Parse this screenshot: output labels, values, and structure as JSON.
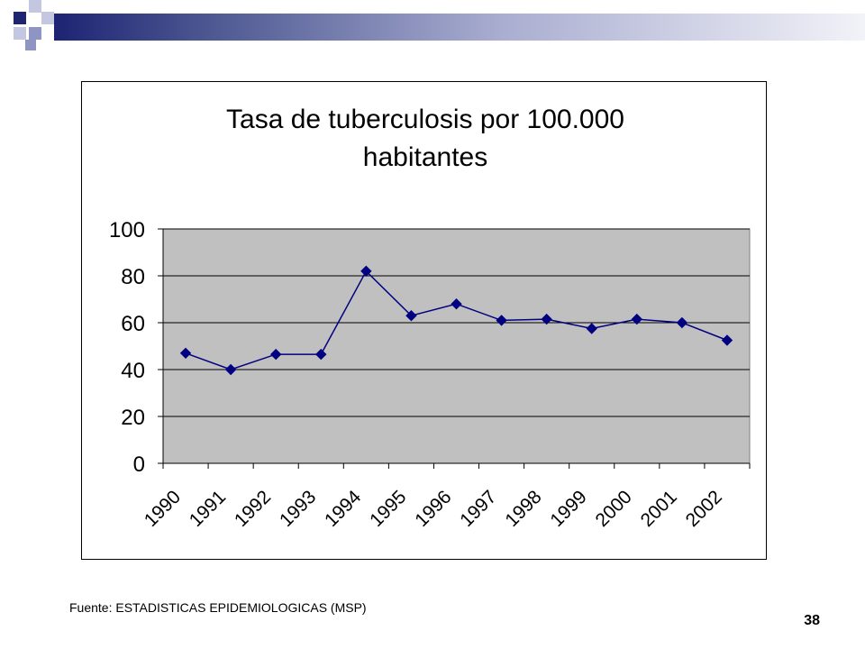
{
  "slide": {
    "source_text": "Fuente: ESTADISTICAS EPIDEMIOLOGICAS (MSP)",
    "page_number": "38",
    "accent_color": "#1c2473"
  },
  "chart_data": {
    "type": "line",
    "title_line1": "Tasa de tuberculosis por 100.000",
    "title_line2": "habitantes",
    "categories": [
      "1990",
      "1991",
      "1992",
      "1993",
      "1994",
      "1995",
      "1996",
      "1997",
      "1998",
      "1999",
      "2000",
      "2001",
      "2002"
    ],
    "values": [
      47,
      40,
      46.5,
      46.5,
      82,
      63,
      68,
      61,
      61.5,
      57.5,
      61.5,
      60,
      52.5
    ],
    "ylim": [
      0,
      100
    ],
    "yticks": [
      "0",
      "20",
      "40",
      "60",
      "80",
      "100"
    ],
    "grid": true,
    "plot_background": "#c0c0c0",
    "series_color": "#000080"
  }
}
